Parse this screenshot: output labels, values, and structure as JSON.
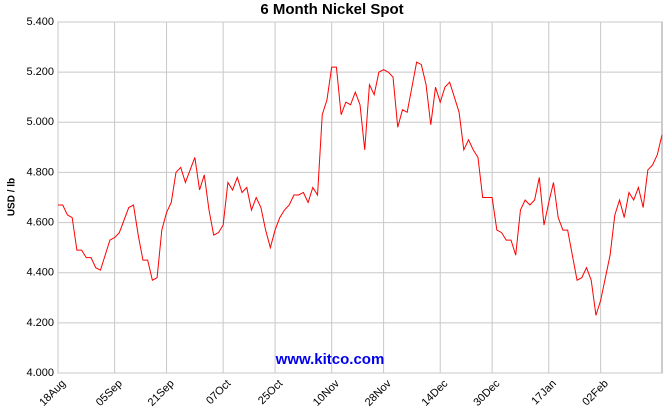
{
  "chart_data": {
    "type": "line",
    "title": "6 Month Nickel Spot",
    "y_label": "USD / lb",
    "watermark": "www.kitco.com",
    "categories": [
      "18Aug",
      null,
      null,
      null,
      null,
      null,
      null,
      null,
      null,
      null,
      null,
      null,
      "05Sep",
      null,
      null,
      null,
      null,
      null,
      null,
      null,
      null,
      null,
      null,
      "21Sep",
      null,
      null,
      null,
      null,
      null,
      null,
      null,
      null,
      null,
      null,
      null,
      "07Oct",
      null,
      null,
      null,
      null,
      null,
      null,
      null,
      null,
      null,
      null,
      "25Oct",
      null,
      null,
      null,
      null,
      null,
      null,
      null,
      null,
      null,
      null,
      null,
      "10Nov",
      null,
      null,
      null,
      null,
      null,
      null,
      null,
      null,
      null,
      null,
      "28Nov",
      null,
      null,
      null,
      null,
      null,
      null,
      null,
      null,
      null,
      null,
      null,
      "14Dec",
      null,
      null,
      null,
      null,
      null,
      null,
      null,
      null,
      null,
      null,
      "30Dec",
      null,
      null,
      null,
      null,
      null,
      null,
      null,
      null,
      null,
      null,
      null,
      "17Jan",
      null,
      null,
      null,
      null,
      null,
      null,
      null,
      null,
      null,
      null,
      "02Feb",
      null,
      null,
      null,
      null,
      null,
      null,
      null,
      null,
      null,
      null,
      null,
      null,
      null
    ],
    "series": [
      {
        "name": "Nickel",
        "color": "#ff0000",
        "values": [
          4.67,
          4.67,
          4.63,
          4.62,
          4.49,
          4.49,
          4.46,
          4.46,
          4.42,
          4.41,
          4.47,
          4.53,
          4.54,
          4.56,
          4.61,
          4.66,
          4.67,
          4.55,
          4.45,
          4.45,
          4.37,
          4.38,
          4.57,
          4.64,
          4.68,
          4.8,
          4.82,
          4.76,
          4.81,
          4.86,
          4.73,
          4.79,
          4.65,
          4.55,
          4.56,
          4.59,
          4.76,
          4.73,
          4.78,
          4.72,
          4.74,
          4.65,
          4.7,
          4.66,
          4.57,
          4.5,
          4.57,
          4.62,
          4.65,
          4.67,
          4.71,
          4.71,
          4.72,
          4.68,
          4.74,
          4.71,
          5.03,
          5.09,
          5.22,
          5.22,
          5.03,
          5.08,
          5.07,
          5.12,
          5.07,
          4.89,
          5.15,
          5.11,
          5.2,
          5.21,
          5.2,
          5.18,
          4.98,
          5.05,
          5.04,
          5.14,
          5.24,
          5.23,
          5.15,
          4.99,
          5.14,
          5.08,
          5.14,
          5.16,
          5.1,
          5.04,
          4.89,
          4.93,
          4.89,
          4.86,
          4.7,
          4.7,
          4.7,
          4.57,
          4.56,
          4.53,
          4.53,
          4.47,
          4.65,
          4.69,
          4.67,
          4.69,
          4.78,
          4.59,
          4.68,
          4.76,
          4.62,
          4.57,
          4.57,
          4.47,
          4.37,
          4.38,
          4.42,
          4.37,
          4.23,
          4.29,
          4.38,
          4.47,
          4.63,
          4.69,
          4.62,
          4.72,
          4.69,
          4.74,
          4.66,
          4.81,
          4.83,
          4.87,
          4.95
        ]
      }
    ],
    "ylim": [
      4.0,
      5.4
    ],
    "yticks": [
      {
        "value": 4.0,
        "label": "4.000"
      },
      {
        "value": 4.2,
        "label": "4.200"
      },
      {
        "value": 4.4,
        "label": "4.400"
      },
      {
        "value": 4.6,
        "label": "4.600"
      },
      {
        "value": 4.8,
        "label": "4.800"
      },
      {
        "value": 5.0,
        "label": "5.000"
      },
      {
        "value": 5.2,
        "label": "5.200"
      },
      {
        "value": 5.4,
        "label": "5.400"
      }
    ],
    "grid": true
  }
}
